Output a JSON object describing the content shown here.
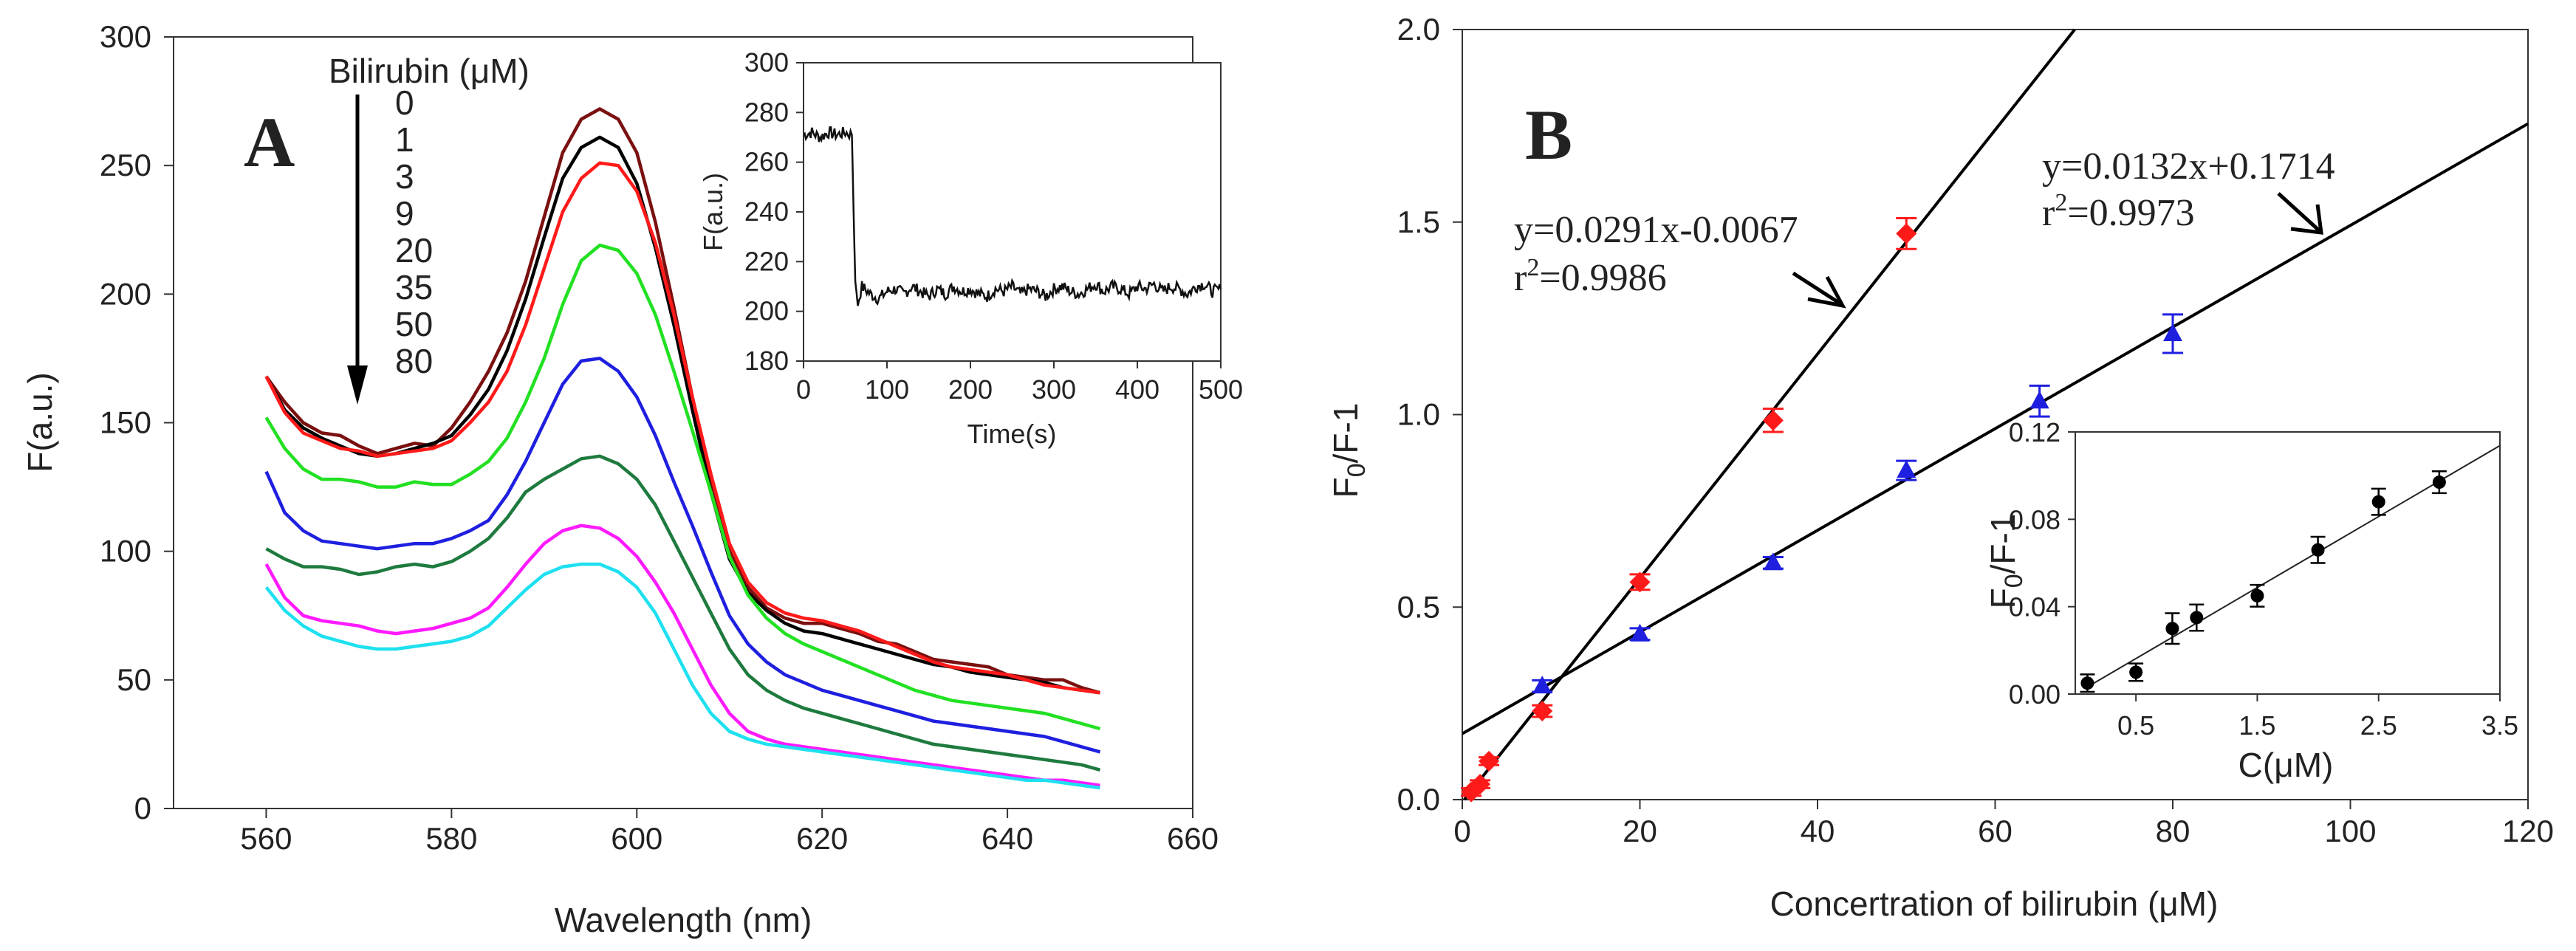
{
  "chart_data": [
    {
      "panel": "A",
      "type": "line",
      "xlabel": "Wavelength (nm)",
      "ylabel": "F(a.u.)",
      "xlim": [
        550,
        660
      ],
      "ylim": [
        0,
        300
      ],
      "xticks": [
        560,
        580,
        600,
        620,
        640,
        660
      ],
      "yticks": [
        0,
        50,
        100,
        150,
        200,
        250,
        300
      ],
      "legend_title": "Bilirubin (μM)",
      "legend_labels": [
        "0",
        "1",
        "3",
        "9",
        "20",
        "35",
        "50",
        "80"
      ],
      "x": [
        560,
        562,
        564,
        566,
        568,
        570,
        572,
        574,
        576,
        578,
        580,
        582,
        584,
        586,
        588,
        590,
        592,
        594,
        596,
        598,
        600,
        602,
        604,
        606,
        608,
        610,
        612,
        614,
        616,
        618,
        620,
        622,
        624,
        626,
        628,
        630,
        632,
        634,
        636,
        638,
        640,
        642,
        644,
        646,
        648,
        650
      ],
      "series": [
        {
          "name": "0",
          "color": "#7a1010",
          "values": [
            168,
            158,
            150,
            146,
            145,
            141,
            138,
            140,
            142,
            141,
            148,
            158,
            170,
            185,
            205,
            230,
            255,
            268,
            272,
            268,
            255,
            228,
            195,
            160,
            128,
            100,
            86,
            78,
            74,
            72,
            72,
            70,
            68,
            65,
            64,
            61,
            58,
            57,
            56,
            55,
            52,
            51,
            50,
            50,
            47,
            45
          ]
        },
        {
          "name": "1",
          "color": "#000000",
          "values": [
            168,
            155,
            148,
            144,
            141,
            138,
            137,
            138,
            140,
            142,
            145,
            153,
            163,
            178,
            198,
            222,
            245,
            257,
            261,
            257,
            243,
            218,
            188,
            155,
            123,
            97,
            84,
            77,
            72,
            69,
            68,
            66,
            64,
            62,
            60,
            58,
            56,
            55,
            53,
            52,
            51,
            50,
            49,
            47,
            46,
            45
          ]
        },
        {
          "name": "3",
          "color": "#ff1a1a",
          "values": [
            168,
            154,
            146,
            143,
            140,
            139,
            137,
            138,
            139,
            140,
            143,
            150,
            158,
            170,
            188,
            210,
            232,
            245,
            251,
            250,
            240,
            220,
            192,
            160,
            130,
            103,
            88,
            80,
            76,
            74,
            73,
            71,
            69,
            66,
            63,
            60,
            57,
            55,
            54,
            53,
            52,
            50,
            48,
            47,
            46,
            45
          ]
        },
        {
          "name": "9",
          "color": "#22e022",
          "values": [
            152,
            140,
            132,
            128,
            128,
            127,
            125,
            125,
            127,
            126,
            126,
            130,
            135,
            144,
            158,
            175,
            196,
            213,
            219,
            217,
            208,
            192,
            170,
            147,
            123,
            98,
            83,
            74,
            68,
            64,
            61,
            58,
            55,
            52,
            49,
            46,
            44,
            42,
            41,
            40,
            39,
            38,
            37,
            35,
            33,
            31
          ]
        },
        {
          "name": "20",
          "color": "#1f1fe0",
          "values": [
            131,
            115,
            108,
            104,
            103,
            102,
            101,
            102,
            103,
            103,
            105,
            108,
            112,
            122,
            135,
            150,
            165,
            174,
            175,
            170,
            160,
            145,
            127,
            110,
            92,
            75,
            64,
            57,
            52,
            49,
            46,
            44,
            42,
            40,
            38,
            36,
            34,
            33,
            32,
            31,
            30,
            29,
            28,
            26,
            24,
            22
          ]
        },
        {
          "name": "35",
          "color": "#1e7a3e",
          "values": [
            101,
            97,
            94,
            94,
            93,
            91,
            92,
            94,
            95,
            94,
            96,
            100,
            105,
            113,
            123,
            128,
            132,
            136,
            137,
            134,
            128,
            118,
            104,
            90,
            76,
            62,
            52,
            46,
            42,
            39,
            37,
            35,
            33,
            31,
            29,
            27,
            25,
            24,
            23,
            22,
            21,
            20,
            19,
            18,
            17,
            15
          ]
        },
        {
          "name": "50",
          "color": "#ff1aff",
          "values": [
            95,
            82,
            75,
            73,
            72,
            71,
            69,
            68,
            69,
            70,
            72,
            74,
            78,
            86,
            95,
            103,
            108,
            110,
            109,
            105,
            98,
            88,
            76,
            62,
            48,
            37,
            30,
            27,
            25,
            24,
            23,
            22,
            21,
            20,
            19,
            18,
            17,
            16,
            15,
            14,
            13,
            12,
            11,
            11,
            10,
            9
          ]
        },
        {
          "name": "80",
          "color": "#1ee0f0",
          "values": [
            86,
            77,
            71,
            67,
            65,
            63,
            62,
            62,
            63,
            64,
            65,
            67,
            71,
            78,
            85,
            91,
            94,
            95,
            95,
            92,
            86,
            76,
            62,
            48,
            37,
            30,
            27,
            25,
            24,
            23,
            22,
            21,
            20,
            19,
            18,
            17,
            16,
            15,
            14,
            13,
            12,
            11,
            11,
            10,
            9,
            8
          ]
        }
      ],
      "inset": {
        "type": "line",
        "xlabel": "Time(s)",
        "ylabel": "F(a.u.)",
        "xlim": [
          0,
          500
        ],
        "ylim": [
          180,
          300
        ],
        "xticks": [
          0,
          100,
          200,
          300,
          400,
          500
        ],
        "yticks": [
          180,
          200,
          220,
          240,
          260,
          280,
          300
        ],
        "x": [
          0,
          10,
          20,
          30,
          40,
          50,
          58,
          60,
          62,
          65,
          70,
          80,
          90,
          100,
          110,
          120,
          130,
          140,
          150,
          160,
          170,
          180,
          190,
          200,
          210,
          220,
          230,
          240,
          250,
          260,
          270,
          280,
          290,
          300,
          310,
          320,
          330,
          340,
          350,
          360,
          370,
          380,
          390,
          400,
          410,
          420,
          430,
          440,
          450,
          460,
          470,
          480,
          490,
          500
        ],
        "values": [
          271,
          272,
          270,
          272,
          271,
          272,
          271,
          240,
          212,
          203,
          210,
          207,
          205,
          208,
          209,
          207,
          210,
          208,
          206,
          209,
          207,
          210,
          208,
          209,
          207,
          206,
          209,
          208,
          210,
          207,
          209,
          208,
          206,
          209,
          210,
          208,
          207,
          209,
          211,
          208,
          210,
          209,
          207,
          210,
          209,
          211,
          208,
          210,
          209,
          207,
          210,
          211,
          208,
          209
        ]
      }
    },
    {
      "panel": "B",
      "type": "scatter",
      "xlabel": "Concertration of bilirubin (μM)",
      "ylabel": "F0/F-1",
      "xlim": [
        0,
        120
      ],
      "ylim": [
        0,
        2.0
      ],
      "xticks": [
        0,
        20,
        40,
        60,
        80,
        100,
        120
      ],
      "yticks": [
        0.0,
        0.5,
        1.0,
        1.5,
        2.0
      ],
      "series": [
        {
          "marker": "diamond",
          "color": "#ff1a1a",
          "x": [
            1,
            2,
            3,
            9,
            20,
            35,
            50
          ],
          "values": [
            0.02,
            0.04,
            0.1,
            0.23,
            0.565,
            0.985,
            1.47
          ],
          "errors": [
            0.01,
            0.01,
            0.01,
            0.015,
            0.02,
            0.03,
            0.04
          ]
        },
        {
          "marker": "triangle",
          "color": "#1f1fe0",
          "x": [
            9,
            20,
            35,
            50,
            65,
            80
          ],
          "values": [
            0.295,
            0.43,
            0.615,
            0.855,
            1.035,
            1.21
          ],
          "errors": [
            0.015,
            0.015,
            0.015,
            0.025,
            0.04,
            0.05
          ]
        }
      ],
      "fits": [
        {
          "slope": 0.0291,
          "intercept": -0.0067,
          "equation": "y=0.0291x-0.0067",
          "r2_label": "r",
          "r2_sup": "2",
          "r2_value": "=0.9986"
        },
        {
          "slope": 0.0132,
          "intercept": 0.1714,
          "equation": "y=0.0132x+0.1714",
          "r2_label": "r",
          "r2_sup": "2",
          "r2_value": "=0.9973"
        }
      ],
      "inset": {
        "type": "scatter",
        "xlabel": "C(μM)",
        "ylabel": "F0/F-1",
        "xlim": [
          0,
          3.5
        ],
        "ylim": [
          0,
          0.12
        ],
        "xticks": [
          "0.5",
          "1.5",
          "2.5",
          "3.5"
        ],
        "yticks": [
          "0.00",
          "0.04",
          "0.08",
          "0.12"
        ],
        "x": [
          0.1,
          0.5,
          0.8,
          1.0,
          1.5,
          2.0,
          2.5,
          3.0
        ],
        "values": [
          0.005,
          0.01,
          0.03,
          0.035,
          0.045,
          0.066,
          0.088,
          0.097
        ],
        "errors": [
          0.004,
          0.004,
          0.007,
          0.006,
          0.005,
          0.006,
          0.006,
          0.005
        ],
        "fit": {
          "slope": 0.0325,
          "intercept": 0.0
        }
      }
    }
  ],
  "labels": {
    "panel_a": "A",
    "panel_b": "B",
    "a_ylabel": "F(a.u.)",
    "a_xlabel": "Wavelength (nm)",
    "a_legend_title": "Bilirubin (μM)",
    "a_inset_xlabel": "Time(s)",
    "a_inset_ylabel": "F(a.u.)",
    "b_ylabel_main": "F",
    "b_ylabel_sub": "0",
    "b_ylabel_rest": "/F-1",
    "b_xlabel": "Concertration of bilirubin (μM)",
    "b_inset_xlabel": "C(μM)",
    "b_inset_ylabel_main": "F",
    "b_inset_ylabel_sub": "0",
    "b_inset_ylabel_rest": "/F-1"
  }
}
